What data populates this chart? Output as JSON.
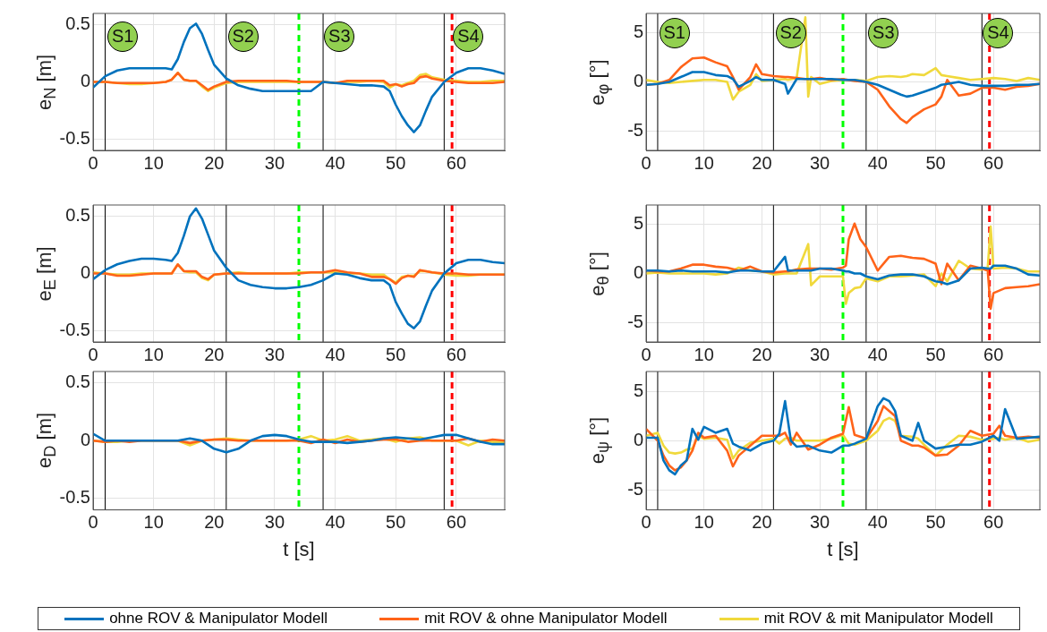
{
  "chart_data": [
    {
      "type": "line",
      "ylabel": "e$_{N}$ [m]",
      "xlim": [
        0,
        68
      ],
      "xticks": [
        0,
        10,
        20,
        30,
        40,
        50,
        60
      ],
      "ylim": [
        -0.6,
        0.6
      ],
      "yticks": [
        -0.5,
        0,
        0.5
      ],
      "grid": true,
      "x": [
        0,
        2,
        4,
        6,
        8,
        10,
        12,
        13,
        14,
        15,
        16,
        17,
        18,
        19,
        20,
        22,
        24,
        26,
        28,
        30,
        32,
        34,
        36,
        38,
        40,
        42,
        44,
        46,
        48,
        49,
        50,
        51,
        52,
        53,
        54,
        55,
        56,
        58,
        60,
        62,
        64,
        66,
        68
      ],
      "series": [
        {
          "name": "ohne ROV & Manipulator Modell",
          "color": "#0072bd",
          "values": [
            -0.05,
            0.05,
            0.1,
            0.12,
            0.12,
            0.12,
            0.12,
            0.11,
            0.2,
            0.35,
            0.47,
            0.51,
            0.42,
            0.28,
            0.15,
            0.03,
            -0.03,
            -0.06,
            -0.08,
            -0.08,
            -0.08,
            -0.08,
            -0.08,
            0,
            -0.01,
            -0.02,
            -0.03,
            -0.03,
            -0.04,
            -0.08,
            -0.2,
            -0.3,
            -0.38,
            -0.44,
            -0.38,
            -0.25,
            -0.13,
            0,
            0.08,
            0.12,
            0.12,
            0.1,
            0.07
          ]
        },
        {
          "name": "mit ROV & ohne Manipulator Modell",
          "color": "#ff6319",
          "values": [
            0,
            0,
            -0.01,
            -0.01,
            -0.01,
            -0.01,
            0,
            0.02,
            0.08,
            0.02,
            0.01,
            0.01,
            -0.03,
            -0.07,
            -0.04,
            0,
            0.01,
            0.01,
            0.01,
            0.01,
            0.01,
            0,
            0,
            0,
            -0.01,
            0.01,
            0.01,
            0.01,
            0.01,
            -0.03,
            -0.02,
            -0.04,
            -0.02,
            -0.01,
            0.04,
            0.05,
            0.03,
            0.01,
            0,
            -0.01,
            -0.01,
            -0.01,
            0
          ]
        },
        {
          "name": "mit ROV & mit Manipulator Modell",
          "color": "#f0d93c",
          "values": [
            0,
            0,
            -0.01,
            -0.02,
            -0.02,
            -0.01,
            0,
            0.02,
            0.08,
            0.02,
            0.01,
            0.01,
            -0.04,
            -0.08,
            -0.05,
            -0.01,
            0,
            0,
            0,
            0,
            0,
            0,
            0,
            0,
            -0.01,
            0,
            0,
            0.01,
            0,
            -0.05,
            -0.02,
            -0.03,
            -0.01,
            0.01,
            0.06,
            0.07,
            0.04,
            0.02,
            0.01,
            0,
            0,
            0.01,
            0.01
          ]
        }
      ],
      "ref_lines": [
        {
          "axis": "x",
          "value": 2,
          "color": "#000000"
        },
        {
          "axis": "x",
          "value": 22,
          "color": "#000000"
        },
        {
          "axis": "x",
          "value": 38,
          "color": "#000000"
        },
        {
          "axis": "x",
          "value": 58,
          "color": "#000000"
        },
        {
          "axis": "x",
          "value": 34,
          "color": "#00ff00",
          "line_style": "dashed"
        },
        {
          "axis": "x",
          "value": 59.3,
          "color": "#ff0000",
          "line_style": "dashed"
        }
      ],
      "legend": "bottom",
      "annotations": [
        {
          "text": "S1",
          "x": 4.9,
          "y": 0.4
        },
        {
          "text": "S2",
          "x": 24.8,
          "y": 0.4
        },
        {
          "text": "S3",
          "x": 40.7,
          "y": 0.4
        },
        {
          "text": "S4",
          "x": 62,
          "y": 0.4
        }
      ]
    },
    {
      "type": "line",
      "ylabel": "e$_{φ}$ [°]",
      "xlim": [
        0,
        68
      ],
      "xticks": [
        0,
        10,
        20,
        30,
        40,
        50,
        60
      ],
      "ylim": [
        -7,
        7
      ],
      "yticks": [
        -5,
        0,
        5
      ],
      "grid": true,
      "x": [
        0,
        2,
        4,
        6,
        8,
        10,
        12,
        14,
        15,
        16,
        18,
        19,
        20,
        22,
        24,
        24.5,
        26,
        27.5,
        28,
        28.5,
        30,
        32,
        34,
        36,
        38,
        40,
        42,
        44,
        45,
        46,
        48,
        50,
        51,
        52,
        54,
        56,
        58,
        60,
        62,
        64,
        66,
        68
      ],
      "series": [
        {
          "color": "#0072bd",
          "values": [
            -0.3,
            -0.2,
            0,
            0.5,
            1,
            1,
            0.7,
            0.6,
            0.3,
            -0.5,
            0.1,
            0.5,
            0.2,
            0.2,
            -0.2,
            -1.2,
            0.3,
            0.3,
            0.3,
            0.3,
            0.3,
            0.3,
            0.2,
            0.2,
            0,
            -0.3,
            -0.8,
            -1.3,
            -1.5,
            -1.4,
            -1,
            -0.6,
            -0.3,
            -0.2,
            0,
            -0.3,
            -0.4,
            -0.4,
            -0.4,
            -0.3,
            -0.3,
            -0.2
          ]
        },
        {
          "color": "#ff6319",
          "values": [
            -0.3,
            -0.2,
            0.2,
            1.5,
            2.4,
            2.5,
            2,
            1.6,
            0.5,
            -0.8,
            0.5,
            1.8,
            0.8,
            0.6,
            0.5,
            0.5,
            0.4,
            0.3,
            0.3,
            0.3,
            0.4,
            0.2,
            0.3,
            0.1,
            0,
            -0.8,
            -2.5,
            -3.8,
            -4.2,
            -3.6,
            -2.8,
            -2.3,
            -1.5,
            0.2,
            -1.4,
            -1.2,
            -0.6,
            -0.6,
            -0.8,
            -0.5,
            -0.4,
            -0.2
          ]
        },
        {
          "color": "#f0d93c",
          "values": [
            0.2,
            0,
            -0.1,
            0,
            0.1,
            0.2,
            0.2,
            0,
            -1.8,
            -1,
            -0.3,
            0.8,
            0.1,
            0.2,
            0.3,
            0.2,
            0.4,
            6.6,
            -1.5,
            0.5,
            -0.2,
            0.1,
            0.2,
            0.2,
            0.1,
            0.5,
            0.6,
            0.5,
            0.6,
            0.8,
            0.7,
            1.4,
            0.7,
            0.6,
            0.4,
            0.2,
            0.3,
            0.4,
            0.3,
            0.1,
            0.4,
            0.2
          ]
        }
      ],
      "ref_lines": [
        {
          "axis": "x",
          "value": 2,
          "color": "#000000"
        },
        {
          "axis": "x",
          "value": 22,
          "color": "#000000"
        },
        {
          "axis": "x",
          "value": 38,
          "color": "#000000"
        },
        {
          "axis": "x",
          "value": 58,
          "color": "#000000"
        },
        {
          "axis": "x",
          "value": 34,
          "color": "#00ff00",
          "line_style": "dashed"
        },
        {
          "axis": "x",
          "value": 59.3,
          "color": "#ff0000",
          "line_style": "dashed"
        }
      ],
      "annotations": [
        {
          "text": "S1",
          "x": 4.9,
          "y": 5
        },
        {
          "text": "S2",
          "x": 25,
          "y": 5
        },
        {
          "text": "S3",
          "x": 41,
          "y": 5
        },
        {
          "text": "S4",
          "x": 60.8,
          "y": 5
        }
      ]
    },
    {
      "type": "line",
      "ylabel": "e$_{E}$ [m]",
      "xlim": [
        0,
        68
      ],
      "xticks": [
        0,
        10,
        20,
        30,
        40,
        50,
        60
      ],
      "ylim": [
        -0.6,
        0.6
      ],
      "yticks": [
        -0.5,
        0,
        0.5
      ],
      "grid": true,
      "x": [
        0,
        2,
        4,
        6,
        8,
        10,
        12,
        13,
        14,
        15,
        16,
        17,
        18,
        19,
        20,
        22,
        24,
        26,
        28,
        30,
        32,
        34,
        36,
        38,
        40,
        42,
        44,
        46,
        48,
        49,
        50,
        51,
        52,
        53,
        54,
        55,
        56,
        58,
        60,
        62,
        64,
        66,
        68
      ],
      "series": [
        {
          "color": "#0072bd",
          "values": [
            -0.05,
            0.03,
            0.08,
            0.11,
            0.13,
            0.13,
            0.12,
            0.11,
            0.18,
            0.33,
            0.5,
            0.57,
            0.48,
            0.34,
            0.2,
            0.05,
            -0.06,
            -0.1,
            -0.12,
            -0.13,
            -0.13,
            -0.12,
            -0.1,
            -0.06,
            0,
            -0.01,
            -0.04,
            -0.06,
            -0.06,
            -0.1,
            -0.25,
            -0.35,
            -0.44,
            -0.48,
            -0.42,
            -0.28,
            -0.15,
            0,
            0.09,
            0.12,
            0.12,
            0.1,
            0.09
          ]
        },
        {
          "color": "#ff6319",
          "values": [
            0,
            0,
            -0.02,
            -0.02,
            -0.01,
            0,
            0,
            0,
            0.08,
            0.02,
            0.02,
            0.02,
            -0.03,
            -0.05,
            -0.01,
            0,
            0,
            0,
            0,
            0,
            0,
            0,
            0.01,
            0.01,
            0.03,
            0.01,
            0,
            -0.03,
            -0.03,
            -0.05,
            -0.09,
            -0.04,
            -0.02,
            -0.03,
            0.03,
            0.02,
            0.01,
            0,
            0,
            -0.01,
            -0.01,
            -0.01,
            -0.01
          ]
        },
        {
          "color": "#f0d93c",
          "values": [
            0.01,
            0,
            -0.01,
            -0.01,
            0,
            0,
            0,
            0,
            0.08,
            0.02,
            0.01,
            0.01,
            -0.04,
            -0.06,
            -0.01,
            0,
            0.01,
            0,
            0,
            0,
            0,
            0.01,
            0.01,
            0.01,
            0.01,
            0,
            0,
            -0.01,
            -0.01,
            -0.05,
            -0.08,
            -0.03,
            -0.02,
            -0.02,
            0.02,
            0.02,
            0.01,
            -0.01,
            -0.02,
            -0.02,
            -0.01,
            -0.01,
            -0.01
          ]
        }
      ],
      "ref_lines": [
        {
          "axis": "x",
          "value": 2,
          "color": "#000000"
        },
        {
          "axis": "x",
          "value": 22,
          "color": "#000000"
        },
        {
          "axis": "x",
          "value": 38,
          "color": "#000000"
        },
        {
          "axis": "x",
          "value": 58,
          "color": "#000000"
        },
        {
          "axis": "x",
          "value": 34,
          "color": "#00ff00",
          "line_style": "dashed"
        },
        {
          "axis": "x",
          "value": 59.3,
          "color": "#ff0000",
          "line_style": "dashed"
        }
      ]
    },
    {
      "type": "line",
      "ylabel": "e$_{θ}$ [°]",
      "xlim": [
        0,
        68
      ],
      "xticks": [
        0,
        10,
        20,
        30,
        40,
        50,
        60
      ],
      "ylim": [
        -7,
        7
      ],
      "yticks": [
        -5,
        0,
        5
      ],
      "grid": true,
      "x": [
        0,
        2,
        4,
        6,
        8,
        10,
        12,
        14,
        16,
        18,
        20,
        22,
        24,
        24.5,
        26,
        28,
        28.5,
        30,
        32,
        34,
        34.5,
        35,
        36,
        37,
        38,
        40,
        42,
        44,
        46,
        48,
        50,
        51,
        52,
        54,
        56,
        58,
        59,
        59.5,
        60,
        62,
        64,
        66,
        68
      ],
      "series": [
        {
          "color": "#0072bd",
          "values": [
            0.3,
            0.3,
            0.2,
            0.3,
            0.2,
            0.2,
            0.2,
            0.1,
            0.3,
            0.3,
            0.2,
            0.2,
            1.7,
            0.3,
            0.3,
            0.3,
            0.3,
            0.5,
            0.5,
            0.3,
            0.2,
            0.2,
            0,
            0,
            -0.3,
            -0.6,
            -0.2,
            -0.1,
            -0.1,
            -0.3,
            -0.8,
            -0.9,
            -1.1,
            -0.7,
            0.5,
            0.6,
            0.5,
            0.5,
            0.8,
            0.8,
            0.5,
            -0.1,
            -0.2
          ]
        },
        {
          "color": "#ff6319",
          "values": [
            0.3,
            0.2,
            0.2,
            0.5,
            0.9,
            0.9,
            0.7,
            0.6,
            0.3,
            0.7,
            0.2,
            0.1,
            0.2,
            0.2,
            0.4,
            0.5,
            0.5,
            0.5,
            0.4,
            0.6,
            0.8,
            3.5,
            5.1,
            3.5,
            2.7,
            0.3,
            1.7,
            1.8,
            1.6,
            1.5,
            1,
            -1.1,
            1,
            -0.7,
            0.8,
            0.5,
            0.3,
            -3.6,
            -2,
            -1.5,
            -1.4,
            -1.3,
            -1.1
          ]
        },
        {
          "color": "#f0d93c",
          "values": [
            0,
            0.1,
            0,
            0,
            0,
            0,
            -0.1,
            0,
            0.6,
            0.3,
            0.2,
            -0.1,
            0,
            0,
            0,
            3,
            -1.2,
            -0.3,
            -0.3,
            -0.3,
            -3.1,
            -2,
            -1.5,
            -1.4,
            -0.5,
            -0.8,
            -0.3,
            -0.3,
            -0.2,
            -0.1,
            -1.3,
            0,
            -0.8,
            1.3,
            0.5,
            0.4,
            0.6,
            4.8,
            0.5,
            0.6,
            0.5,
            0.2,
            0.2
          ]
        }
      ],
      "ref_lines": [
        {
          "axis": "x",
          "value": 2,
          "color": "#000000"
        },
        {
          "axis": "x",
          "value": 22,
          "color": "#000000"
        },
        {
          "axis": "x",
          "value": 38,
          "color": "#000000"
        },
        {
          "axis": "x",
          "value": 58,
          "color": "#000000"
        },
        {
          "axis": "x",
          "value": 34,
          "color": "#00ff00",
          "line_style": "dashed"
        },
        {
          "axis": "x",
          "value": 59.3,
          "color": "#ff0000",
          "line_style": "dashed"
        }
      ]
    },
    {
      "type": "line",
      "ylabel": "e$_{D}$ [m]",
      "xlabel": "t [s]",
      "xlim": [
        0,
        68
      ],
      "xticks": [
        0,
        10,
        20,
        30,
        40,
        50,
        60
      ],
      "ylim": [
        -0.6,
        0.6
      ],
      "yticks": [
        -0.5,
        0,
        0.5
      ],
      "grid": true,
      "x": [
        0,
        2,
        4,
        6,
        8,
        10,
        12,
        14,
        16,
        18,
        20,
        22,
        24,
        26,
        28,
        30,
        32,
        34,
        36,
        38,
        40,
        42,
        44,
        46,
        48,
        50,
        52,
        54,
        56,
        58,
        60,
        62,
        64,
        66,
        68
      ],
      "series": [
        {
          "color": "#0072bd",
          "values": [
            0.06,
            0,
            0,
            0,
            0,
            0,
            0,
            0,
            0.02,
            0,
            -0.07,
            -0.1,
            -0.07,
            0,
            0.04,
            0.05,
            0.04,
            0.01,
            -0.01,
            -0.01,
            -0.01,
            -0.02,
            -0.01,
            0,
            0.02,
            0.03,
            0.02,
            0.01,
            0.03,
            0.05,
            0.05,
            0.02,
            -0.01,
            -0.03,
            -0.03
          ]
        },
        {
          "color": "#ff6319",
          "values": [
            0,
            -0.01,
            0,
            -0.01,
            0,
            0,
            0,
            0,
            -0.02,
            0,
            0.01,
            0.01,
            0,
            0,
            0,
            0,
            0,
            0,
            -0.02,
            0.01,
            -0.02,
            0.01,
            -0.01,
            0,
            0.01,
            0.01,
            -0.01,
            0,
            0,
            0,
            0,
            0.02,
            -0.01,
            0.01,
            0
          ]
        },
        {
          "color": "#f0d93c",
          "values": [
            0,
            -0.01,
            -0.01,
            0,
            0,
            0,
            0,
            0,
            -0.04,
            0,
            0.01,
            0.02,
            0.01,
            0,
            0,
            0,
            0,
            0.01,
            0.04,
            0,
            0.01,
            0.04,
            0,
            0.01,
            0.02,
            -0.01,
            0.02,
            0.03,
            0,
            0,
            0,
            -0.04,
            0,
            -0.01,
            -0.01
          ]
        }
      ],
      "ref_lines": [
        {
          "axis": "x",
          "value": 2,
          "color": "#000000"
        },
        {
          "axis": "x",
          "value": 22,
          "color": "#000000"
        },
        {
          "axis": "x",
          "value": 38,
          "color": "#000000"
        },
        {
          "axis": "x",
          "value": 58,
          "color": "#000000"
        },
        {
          "axis": "x",
          "value": 34,
          "color": "#00ff00",
          "line_style": "dashed"
        },
        {
          "axis": "x",
          "value": 59.3,
          "color": "#ff0000",
          "line_style": "dashed"
        }
      ]
    },
    {
      "type": "line",
      "ylabel": "e$_{ψ}$ [°]",
      "xlabel": "t [s]",
      "xlim": [
        0,
        68
      ],
      "xticks": [
        0,
        10,
        20,
        30,
        40,
        50,
        60
      ],
      "ylim": [
        -7,
        7
      ],
      "yticks": [
        -5,
        0,
        5
      ],
      "grid": true,
      "x": [
        0,
        2,
        3,
        4,
        5,
        6,
        7,
        8,
        9,
        10,
        12,
        14,
        15,
        16,
        18,
        20,
        22,
        23,
        24,
        25,
        26,
        28,
        30,
        32,
        34,
        35,
        36,
        38,
        40,
        41,
        42,
        43,
        44,
        46,
        47,
        48,
        50,
        52,
        54,
        56,
        58,
        60,
        61,
        62,
        64,
        66,
        68
      ],
      "series": [
        {
          "color": "#0072bd",
          "values": [
            0.3,
            0.3,
            -2,
            -3,
            -3.4,
            -2.5,
            -2,
            1.2,
            0.1,
            1.4,
            0.8,
            1.2,
            -0.3,
            -0.6,
            -1,
            -0.3,
            0,
            0.7,
            4,
            0,
            -0.6,
            -0.5,
            -1,
            -1.2,
            -0.5,
            -0.5,
            -0.3,
            0.2,
            3.5,
            4.3,
            4,
            3,
            0.5,
            0,
            1.8,
            0,
            -0.8,
            -0.6,
            -0.4,
            -0.4,
            -0.1,
            0.5,
            0,
            3.2,
            0.2,
            0.3,
            0.4
          ]
        },
        {
          "color": "#ff6319",
          "values": [
            1.2,
            0,
            -1.5,
            -2.5,
            -3,
            -2.7,
            -2,
            -1,
            0.8,
            0.3,
            0.5,
            -1,
            -2.6,
            -1.5,
            -0.5,
            0.5,
            0.5,
            0.5,
            0.8,
            -0.4,
            0.8,
            -0.9,
            -0.4,
            0.3,
            0.7,
            3.4,
            0.6,
            0.2,
            2,
            3.5,
            3,
            2.5,
            0,
            -0.5,
            -0.5,
            -0.7,
            -1.5,
            -1.4,
            -0.5,
            1,
            0.5,
            0.7,
            1.5,
            0.5,
            0.3,
            0.4,
            0.3
          ]
        },
        {
          "color": "#f0d93c",
          "values": [
            0.5,
            0.8,
            -0.5,
            -1.2,
            -1.3,
            -1.2,
            -0.9,
            -0.8,
            0.5,
            0.2,
            0.3,
            0.1,
            -1.8,
            -1,
            -0.2,
            0,
            0.2,
            -0.3,
            0.2,
            0.3,
            0,
            0,
            0,
            0.2,
            0.6,
            -0.3,
            -0.4,
            0,
            1,
            2,
            2.3,
            2,
            0.5,
            0.4,
            0.2,
            -0.4,
            -1.5,
            -0.4,
            0.5,
            0.4,
            0.1,
            0.2,
            0.3,
            0.1,
            0.3,
            -0.1,
            0.1
          ]
        }
      ],
      "ref_lines": [
        {
          "axis": "x",
          "value": 2,
          "color": "#000000"
        },
        {
          "axis": "x",
          "value": 22,
          "color": "#000000"
        },
        {
          "axis": "x",
          "value": 38,
          "color": "#000000"
        },
        {
          "axis": "x",
          "value": 58,
          "color": "#000000"
        },
        {
          "axis": "x",
          "value": 34,
          "color": "#00ff00",
          "line_style": "dashed"
        },
        {
          "axis": "x",
          "value": 59.3,
          "color": "#ff0000",
          "line_style": "dashed"
        }
      ]
    }
  ]
}
